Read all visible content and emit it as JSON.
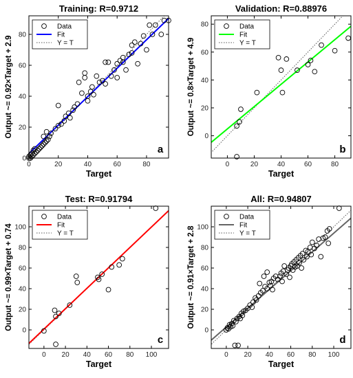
{
  "chart_data": [
    {
      "type": "scatter",
      "title": "Training: R=0.9712",
      "xlabel": "Target",
      "ylabel": "Output ~= 0.92×Target + 2.9",
      "panel_label": "a",
      "xlim": [
        0,
        95
      ],
      "ylim": [
        0,
        92
      ],
      "xticks": [
        0,
        20,
        40,
        60,
        80
      ],
      "yticks": [
        0,
        20,
        40,
        60,
        80
      ],
      "fit": {
        "slope": 0.92,
        "intercept": 2.9,
        "color": "#0000ff"
      },
      "legend": [
        "Data",
        "Fit",
        "Y = T"
      ],
      "points": [
        [
          0,
          0
        ],
        [
          0,
          1
        ],
        [
          1,
          0
        ],
        [
          1,
          2
        ],
        [
          2,
          1
        ],
        [
          2,
          3
        ],
        [
          3,
          2
        ],
        [
          3,
          5
        ],
        [
          4,
          3
        ],
        [
          4,
          6
        ],
        [
          5,
          4
        ],
        [
          6,
          5
        ],
        [
          7,
          6
        ],
        [
          8,
          7
        ],
        [
          9,
          8
        ],
        [
          10,
          9
        ],
        [
          11,
          10
        ],
        [
          12,
          11
        ],
        [
          13,
          12
        ],
        [
          14,
          14
        ],
        [
          10,
          14
        ],
        [
          12,
          17
        ],
        [
          15,
          16
        ],
        [
          18,
          19
        ],
        [
          20,
          21
        ],
        [
          22,
          22
        ],
        [
          24,
          24
        ],
        [
          25,
          27
        ],
        [
          27,
          29
        ],
        [
          28,
          26
        ],
        [
          30,
          31
        ],
        [
          31,
          33
        ],
        [
          20,
          34
        ],
        [
          33,
          35
        ],
        [
          34,
          49
        ],
        [
          36,
          42
        ],
        [
          38,
          52
        ],
        [
          38,
          55
        ],
        [
          40,
          37
        ],
        [
          40,
          40
        ],
        [
          42,
          43
        ],
        [
          43,
          46
        ],
        [
          44,
          41
        ],
        [
          46,
          53
        ],
        [
          48,
          49
        ],
        [
          50,
          50
        ],
        [
          52,
          48
        ],
        [
          52,
          62
        ],
        [
          54,
          62
        ],
        [
          56,
          53
        ],
        [
          58,
          57
        ],
        [
          60,
          52
        ],
        [
          60,
          61
        ],
        [
          62,
          63
        ],
        [
          64,
          62
        ],
        [
          64,
          65
        ],
        [
          66,
          57
        ],
        [
          68,
          67
        ],
        [
          70,
          73
        ],
        [
          70,
          68
        ],
        [
          72,
          75
        ],
        [
          74,
          61
        ],
        [
          76,
          74
        ],
        [
          78,
          79
        ],
        [
          80,
          70
        ],
        [
          82,
          86
        ],
        [
          84,
          80
        ],
        [
          86,
          86
        ],
        [
          90,
          80
        ],
        [
          92,
          89
        ],
        [
          95,
          89
        ]
      ]
    },
    {
      "type": "scatter",
      "title": "Validation: R=0.88976",
      "xlabel": "Target",
      "ylabel": "Output ~= 0.8×Target + 4.9",
      "panel_label": "b",
      "xlim": [
        -12,
        92
      ],
      "ylim": [
        -16,
        86
      ],
      "xticks": [
        0,
        20,
        40,
        60,
        80
      ],
      "yticks": [
        0,
        20,
        40,
        60,
        80
      ],
      "fit": {
        "slope": 0.8,
        "intercept": 4.9,
        "color": "#00ff00"
      },
      "legend": [
        "Data",
        "Fit",
        "Y = T"
      ],
      "points": [
        [
          7,
          -15
        ],
        [
          7,
          7
        ],
        [
          9,
          10
        ],
        [
          10,
          19
        ],
        [
          22,
          31
        ],
        [
          38,
          56
        ],
        [
          40,
          47
        ],
        [
          41,
          31
        ],
        [
          44,
          55
        ],
        [
          52,
          47
        ],
        [
          60,
          51
        ],
        [
          62,
          54
        ],
        [
          65,
          46
        ],
        [
          70,
          65
        ],
        [
          80,
          61
        ],
        [
          90,
          70
        ]
      ]
    },
    {
      "type": "scatter",
      "title": "Test: R=0.91794",
      "xlabel": "Target",
      "ylabel": "Output ~= 0.99×Target + 0.74",
      "panel_label": "c",
      "xlim": [
        -14,
        116
      ],
      "ylim": [
        -18,
        120
      ],
      "xticks": [
        0,
        20,
        40,
        60,
        80,
        100
      ],
      "yticks": [
        0,
        20,
        40,
        60,
        80,
        100
      ],
      "fit": {
        "slope": 0.99,
        "intercept": 0.74,
        "color": "#ff0000"
      },
      "legend": [
        "Data",
        "Fit",
        "Y = T"
      ],
      "points": [
        [
          0,
          -1
        ],
        [
          10,
          19
        ],
        [
          11,
          -14
        ],
        [
          11,
          13
        ],
        [
          14,
          16
        ],
        [
          24,
          24
        ],
        [
          30,
          52
        ],
        [
          31,
          46
        ],
        [
          50,
          51
        ],
        [
          51,
          49
        ],
        [
          54,
          54
        ],
        [
          60,
          39
        ],
        [
          63,
          61
        ],
        [
          70,
          63
        ],
        [
          73,
          69
        ],
        [
          104,
          118
        ]
      ]
    },
    {
      "type": "scatter",
      "title": "All: R=0.94807",
      "xlabel": "Target",
      "ylabel": "Output ~= 0.91×Target + 2.8",
      "panel_label": "d",
      "xlim": [
        -14,
        116
      ],
      "ylim": [
        -18,
        120
      ],
      "xticks": [
        0,
        20,
        40,
        60,
        80,
        100
      ],
      "yticks": [
        0,
        20,
        40,
        60,
        80,
        100
      ],
      "fit": {
        "slope": 0.91,
        "intercept": 2.8,
        "color": "#646464"
      },
      "legend": [
        "Data",
        "Fit",
        "Y = T"
      ],
      "points": [
        [
          0,
          0
        ],
        [
          1,
          2
        ],
        [
          2,
          1
        ],
        [
          3,
          5
        ],
        [
          4,
          3
        ],
        [
          5,
          6
        ],
        [
          6,
          4
        ],
        [
          7,
          9
        ],
        [
          8,
          -15
        ],
        [
          9,
          8
        ],
        [
          10,
          11
        ],
        [
          11,
          -15
        ],
        [
          12,
          13
        ],
        [
          13,
          11
        ],
        [
          14,
          16
        ],
        [
          15,
          14
        ],
        [
          16,
          18
        ],
        [
          18,
          19
        ],
        [
          20,
          21
        ],
        [
          22,
          24
        ],
        [
          24,
          22
        ],
        [
          25,
          27
        ],
        [
          27,
          31
        ],
        [
          28,
          29
        ],
        [
          30,
          33
        ],
        [
          31,
          45
        ],
        [
          32,
          36
        ],
        [
          34,
          38
        ],
        [
          35,
          52
        ],
        [
          36,
          42
        ],
        [
          38,
          40
        ],
        [
          38,
          56
        ],
        [
          40,
          46
        ],
        [
          41,
          43
        ],
        [
          42,
          47
        ],
        [
          43,
          39
        ],
        [
          44,
          50
        ],
        [
          46,
          52
        ],
        [
          48,
          49
        ],
        [
          50,
          52
        ],
        [
          51,
          55
        ],
        [
          52,
          47
        ],
        [
          53,
          57
        ],
        [
          54,
          62
        ],
        [
          56,
          54
        ],
        [
          57,
          58
        ],
        [
          58,
          60
        ],
        [
          59,
          51
        ],
        [
          60,
          62
        ],
        [
          61,
          64
        ],
        [
          62,
          58
        ],
        [
          63,
          66
        ],
        [
          64,
          61
        ],
        [
          65,
          68
        ],
        [
          66,
          62
        ],
        [
          67,
          70
        ],
        [
          68,
          65
        ],
        [
          69,
          72
        ],
        [
          70,
          60
        ],
        [
          71,
          74
        ],
        [
          72,
          68
        ],
        [
          74,
          77
        ],
        [
          75,
          71
        ],
        [
          76,
          76
        ],
        [
          78,
          80
        ],
        [
          79,
          73
        ],
        [
          80,
          85
        ],
        [
          82,
          79
        ],
        [
          84,
          82
        ],
        [
          86,
          88
        ],
        [
          88,
          71
        ],
        [
          90,
          89
        ],
        [
          92,
          90
        ],
        [
          94,
          96
        ],
        [
          95,
          84
        ],
        [
          96,
          98
        ],
        [
          105,
          118
        ]
      ]
    }
  ]
}
